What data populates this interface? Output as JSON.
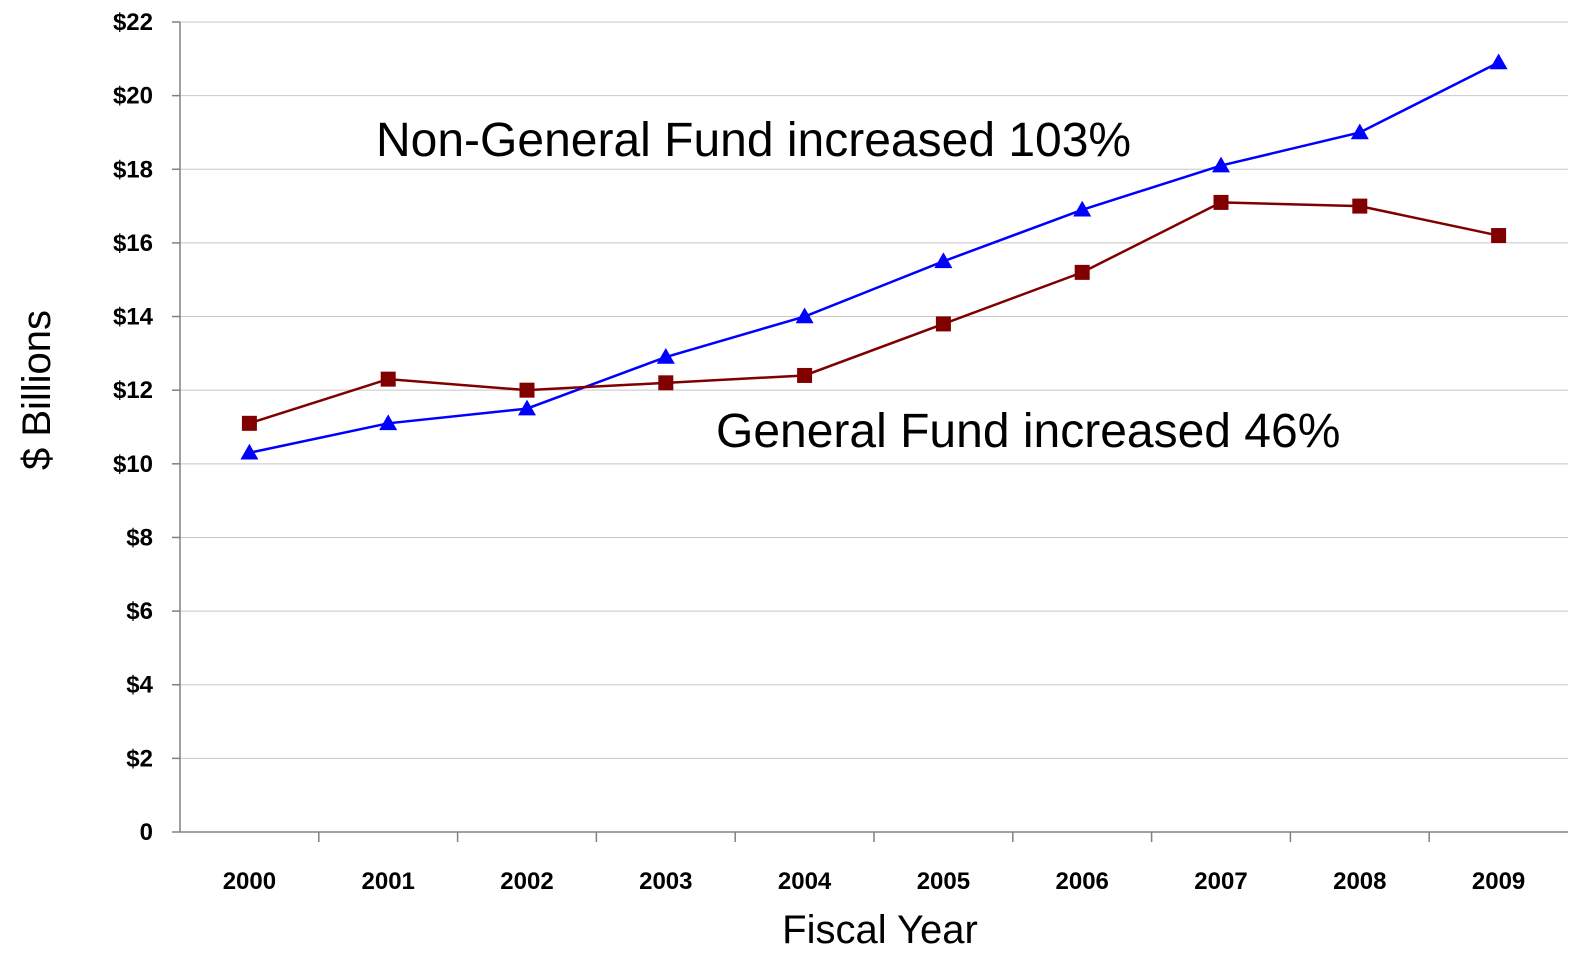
{
  "chart_data": {
    "type": "line",
    "xlabel": "Fiscal Year",
    "ylabel": "$ Billions",
    "categories": [
      "2000",
      "2001",
      "2002",
      "2003",
      "2004",
      "2005",
      "2006",
      "2007",
      "2008",
      "2009"
    ],
    "ylim": [
      0,
      22
    ],
    "yticks": [
      0,
      2,
      4,
      6,
      8,
      10,
      12,
      14,
      16,
      18,
      20,
      22
    ],
    "ytick_labels": [
      "0",
      "$2",
      "$4",
      "$6",
      "$8",
      "$10",
      "$12",
      "$14",
      "$16",
      "$18",
      "$20",
      "$22"
    ],
    "grid": true,
    "legend": "none",
    "series": [
      {
        "key": "non_general_fund",
        "color": "#0000ff",
        "marker": "triangle",
        "values": [
          10.3,
          11.1,
          11.5,
          12.9,
          14.0,
          15.5,
          16.9,
          18.1,
          19.0,
          20.9
        ]
      },
      {
        "key": "general_fund",
        "color": "#800000",
        "marker": "square",
        "values": [
          11.1,
          12.3,
          12.0,
          12.2,
          12.4,
          13.8,
          15.2,
          17.1,
          17.0,
          16.2
        ]
      }
    ],
    "annotations": [
      {
        "key": "non_general_fund",
        "text": "Non-General Fund increased 103%"
      },
      {
        "key": "general_fund",
        "text": "General Fund increased 46%"
      }
    ]
  }
}
